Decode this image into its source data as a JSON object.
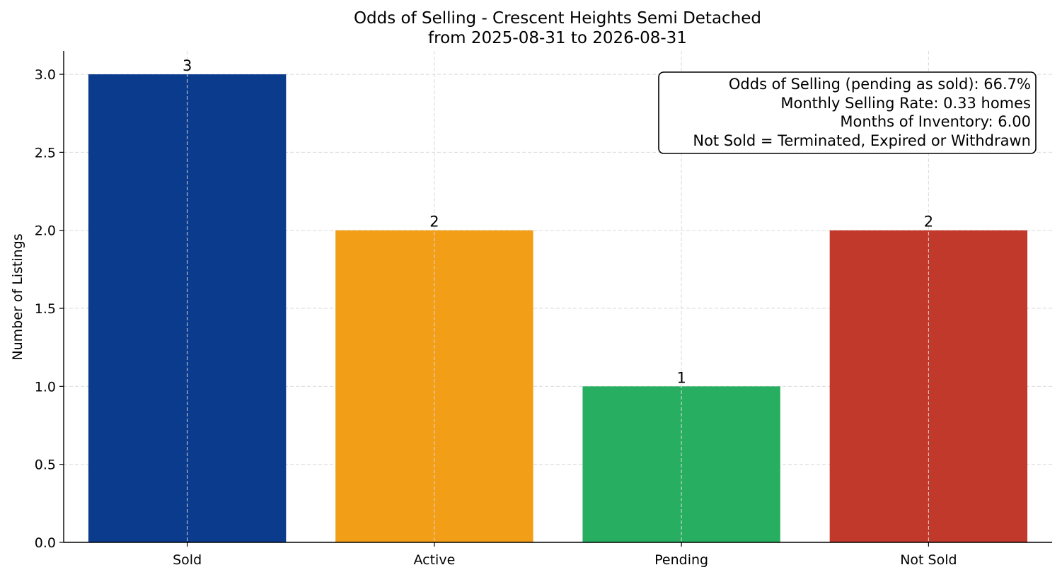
{
  "chart_data": {
    "type": "bar",
    "title": "Odds of Selling - Crescent Heights Semi Detached",
    "subtitle": "from 2025-08-31 to 2026-08-31",
    "xlabel": "",
    "ylabel": "Number of Listings",
    "categories": [
      "Sold",
      "Active",
      "Pending",
      "Not Sold"
    ],
    "values": [
      3,
      2,
      1,
      2
    ],
    "data_labels": [
      "3",
      "2",
      "1",
      "2"
    ],
    "colors": [
      "#0b3b8c",
      "#f29e16",
      "#28ae60",
      "#c0392b"
    ],
    "ylim": [
      0,
      3.15
    ],
    "yticks": [
      0.0,
      0.5,
      1.0,
      1.5,
      2.0,
      2.5,
      3.0
    ],
    "ytick_labels": [
      "0.0",
      "0.5",
      "1.0",
      "1.5",
      "2.0",
      "2.5",
      "3.0"
    ],
    "grid": true,
    "annotation_placement": "top-right",
    "annotation_lines": [
      "Odds of Selling (pending as sold): 66.7%",
      "Monthly Selling Rate: 0.33 homes",
      "Months of Inventory: 6.00",
      "Not Sold = Terminated, Expired or Withdrawn"
    ]
  }
}
